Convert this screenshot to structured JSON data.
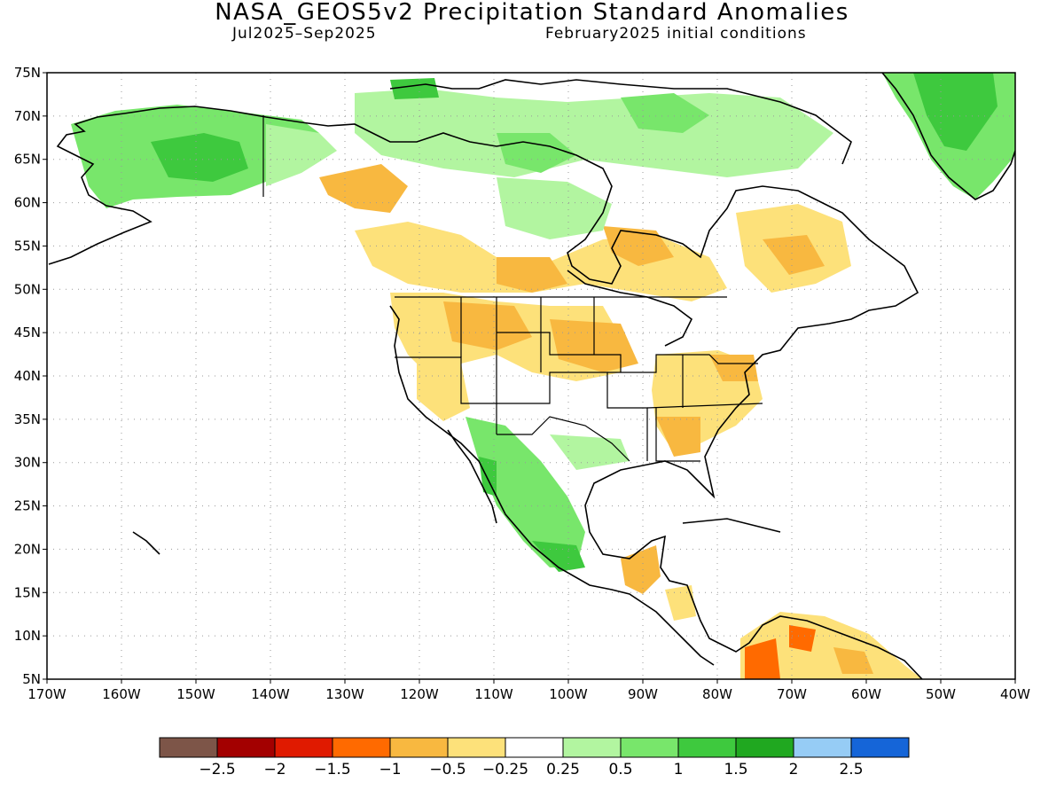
{
  "header": {
    "title": "NASA_GEOS5v2 Precipitation Standard Anomalies",
    "period": "Jul2025–Sep2025",
    "init": "February2025 initial conditions"
  },
  "map": {
    "lon_range": [
      -170,
      -40
    ],
    "lat_range": [
      5,
      75
    ],
    "lat_ticks": [
      "5N",
      "10N",
      "15N",
      "20N",
      "25N",
      "30N",
      "35N",
      "40N",
      "45N",
      "50N",
      "55N",
      "60N",
      "65N",
      "70N",
      "75N"
    ],
    "lon_ticks": [
      "170W",
      "160W",
      "150W",
      "140W",
      "130W",
      "120W",
      "110W",
      "100W",
      "90W",
      "80W",
      "70W",
      "60W",
      "50W",
      "40W"
    ],
    "grid": "dotted"
  },
  "colorbar": {
    "labels": [
      "−2.5",
      "−2",
      "−1.5",
      "−1",
      "−0.5",
      "−0.25",
      "0.25",
      "0.5",
      "1",
      "1.5",
      "2",
      "2.5"
    ],
    "colors": [
      "#7d5548",
      "#a30000",
      "#e01a00",
      "#ff6a00",
      "#f8b840",
      "#fde17a",
      "#ffffff",
      "#b2f5a0",
      "#78e66b",
      "#3ec93e",
      "#20a820",
      "#96ccf5",
      "#1565d8"
    ]
  }
}
